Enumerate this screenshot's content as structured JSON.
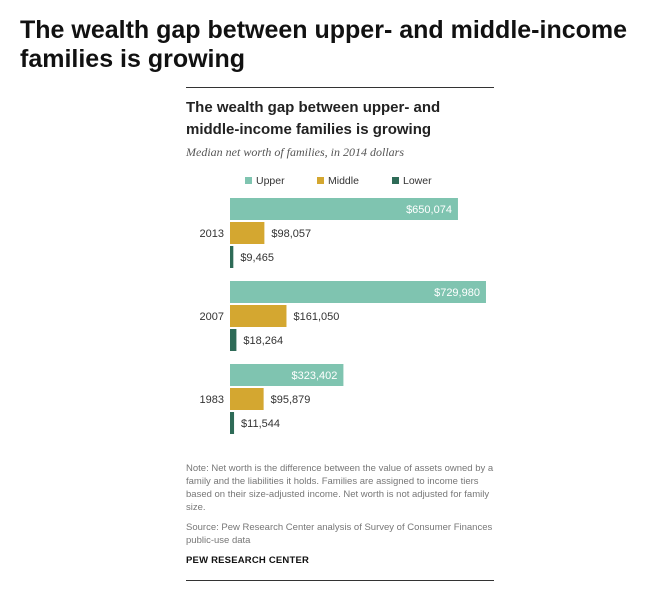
{
  "page_title": "The wealth gap between upper- and middle-income families is growing",
  "chart_data": {
    "type": "bar",
    "orientation": "horizontal",
    "title": "The wealth gap between upper- and middle-income families is growing",
    "subtitle": "Median net worth of families, in 2014 dollars",
    "categories": [
      "2013",
      "2007",
      "1983"
    ],
    "series": [
      {
        "name": "Upper",
        "color": "#7fc4b0",
        "values": [
          650074,
          729980,
          323402
        ],
        "labels": [
          "$650,074",
          "$729,980",
          "$323,402"
        ]
      },
      {
        "name": "Middle",
        "color": "#d4a730",
        "values": [
          98057,
          161050,
          95879
        ],
        "labels": [
          "$98,057",
          "$161,050",
          "$95,879"
        ]
      },
      {
        "name": "Lower",
        "color": "#2e6b57",
        "values": [
          9465,
          18264,
          11544
        ],
        "labels": [
          "$9,465",
          "$18,264",
          "$11,544"
        ]
      }
    ],
    "xlim": [
      0,
      750000
    ],
    "grid": false,
    "legend_position": "top"
  },
  "note": "Note: Net worth is the difference between the value of assets owned by a family and the liabilities it holds. Families are assigned to income tiers based on their size-adjusted income. Net worth is not adjusted for family size.",
  "source": "Source: Pew Research Center analysis of Survey of Consumer Finances public-use data",
  "brand": "PEW RESEARCH CENTER"
}
